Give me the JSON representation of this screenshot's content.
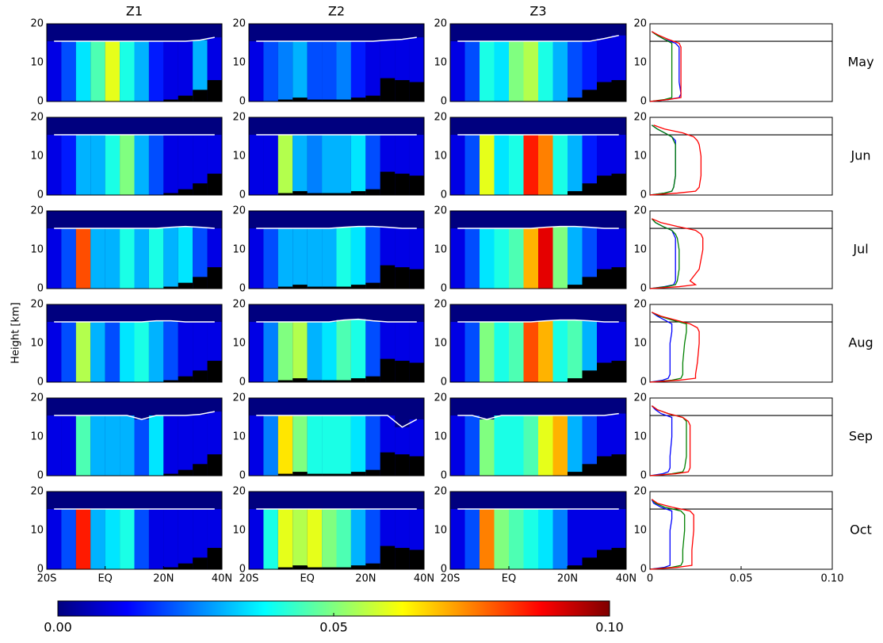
{
  "chart_data": {
    "type": "heatmap-grid",
    "ylabel": "Height [km]",
    "ylim": [
      0,
      20
    ],
    "yticks": [
      0,
      10,
      20
    ],
    "xlim": [
      -20,
      40
    ],
    "xticks": [
      {
        "value": -20,
        "label": "20S"
      },
      {
        "value": 0,
        "label": "EQ"
      },
      {
        "value": 20,
        "label": "20N"
      },
      {
        "value": 40,
        "label": "40N"
      }
    ],
    "x": [
      -17.5,
      -12.5,
      -7.5,
      -2.5,
      2.5,
      7.5,
      12.5,
      17.5,
      22.5,
      27.5,
      32.5,
      37.5
    ],
    "colormap": [
      "#00007f",
      "#0000ff",
      "#0080ff",
      "#00ffff",
      "#80ff80",
      "#ffff00",
      "#ff8000",
      "#ff0000",
      "#7f0000"
    ],
    "clim": [
      0,
      0.1
    ],
    "cticks": [
      {
        "value": 0,
        "label": "0.00"
      },
      0.05,
      {
        "value": 0.1,
        "label": "0.10"
      }
    ],
    "profile_xlim": [
      0,
      0.1
    ],
    "profile_xticks": [
      0,
      0.05,
      {
        "value": 0.1,
        "label": "0.10"
      }
    ],
    "profile_heights": [
      0,
      0.5,
      1,
      2,
      5,
      10,
      13,
      14,
      15,
      16,
      17,
      18
    ],
    "profile_colors": [
      "#0000ff",
      "#008000",
      "#ff0000"
    ],
    "zones": [
      {
        "name": "Z1",
        "terrain": [
          0,
          0,
          0,
          0,
          0,
          0,
          0,
          0,
          0.5,
          1.5,
          3,
          5.5
        ]
      },
      {
        "name": "Z2",
        "terrain": [
          0,
          0,
          0.5,
          1,
          0.5,
          0.5,
          0.5,
          1,
          1.5,
          6,
          5.5,
          5
        ]
      },
      {
        "name": "Z3",
        "terrain": [
          0,
          0,
          0,
          0,
          0,
          0,
          0,
          0,
          1,
          3,
          5,
          5.5
        ]
      }
    ],
    "rows": [
      {
        "name": "May",
        "panels": [
          {
            "values": [
              0.01,
              0.02,
              0.035,
              0.045,
              0.06,
              0.04,
              0.03,
              0.015,
              0.01,
              0.01,
              0.03,
              0.01
            ],
            "tropopause": [
              15.5,
              15.5,
              15.5,
              15.5,
              15.5,
              15.5,
              15.5,
              15.5,
              15.5,
              15.5,
              15.8,
              16.5
            ]
          },
          {
            "values": [
              0.01,
              0.02,
              0.025,
              0.03,
              0.02,
              0.02,
              0.025,
              0.015,
              0.01,
              0.01,
              0.01,
              0.01
            ],
            "tropopause": [
              15.5,
              15.5,
              15.5,
              15.5,
              15.5,
              15.5,
              15.5,
              15.5,
              15.5,
              15.8,
              16,
              16.5
            ]
          },
          {
            "values": [
              0.01,
              0.02,
              0.04,
              0.035,
              0.05,
              0.055,
              0.04,
              0.03,
              0.02,
              0.015,
              0.01,
              0.01
            ],
            "tropopause": [
              15.5,
              15.5,
              15.5,
              15.5,
              15.5,
              15.5,
              15.5,
              15.5,
              15.5,
              15.5,
              16.2,
              17
            ]
          }
        ],
        "profile": {
          "tropopause": 15.5,
          "series": [
            {
              "values": [
                0,
                0.01,
                0.016,
                0.017,
                0.016,
                0.016,
                0.016,
                0.016,
                0.014,
                0.008,
                0.004,
                0.001
              ]
            },
            {
              "values": [
                0,
                0.008,
                0.012,
                0.012,
                0.012,
                0.012,
                0.012,
                0.012,
                0.012,
                0.008,
                0.004,
                0.001
              ]
            },
            {
              "values": [
                0,
                0.01,
                0.017,
                0.017,
                0.017,
                0.017,
                0.017,
                0.017,
                0.016,
                0.01,
                0.005,
                0.001
              ]
            }
          ]
        }
      },
      {
        "name": "Jun",
        "panels": [
          {
            "values": [
              0.01,
              0.015,
              0.03,
              0.03,
              0.04,
              0.05,
              0.03,
              0.02,
              0.01,
              0.01,
              0.01,
              0.01
            ],
            "tropopause": [
              15.5,
              15.5,
              15.5,
              15.5,
              15.5,
              15.5,
              15.5,
              15.5,
              15.5,
              15.5,
              15.5,
              15.5
            ]
          },
          {
            "values": [
              0.01,
              0.01,
              0.055,
              0.03,
              0.025,
              0.03,
              0.03,
              0.035,
              0.02,
              0.01,
              0.01,
              0.01
            ],
            "tropopause": [
              15.5,
              15.5,
              15.5,
              15.5,
              15.5,
              15.5,
              15.5,
              15.5,
              15.5,
              15.5,
              15.5,
              15.5
            ]
          },
          {
            "values": [
              0.01,
              0.02,
              0.06,
              0.035,
              0.04,
              0.085,
              0.075,
              0.04,
              0.03,
              0.015,
              0.01,
              0.01
            ],
            "tropopause": [
              15.5,
              15.5,
              15.5,
              15.5,
              15.5,
              15.5,
              15.5,
              15.5,
              15.5,
              15.5,
              15.5,
              15.5
            ]
          }
        ],
        "profile": {
          "tropopause": 15.5,
          "series": [
            {
              "values": [
                0,
                0.008,
                0.012,
                0.013,
                0.014,
                0.014,
                0.014,
                0.014,
                0.012,
                0.008,
                0.004,
                0.001
              ]
            },
            {
              "values": [
                0,
                0.008,
                0.012,
                0.013,
                0.014,
                0.014,
                0.014,
                0.013,
                0.012,
                0.008,
                0.004,
                0.001
              ]
            },
            {
              "values": [
                0,
                0.015,
                0.025,
                0.027,
                0.028,
                0.028,
                0.027,
                0.026,
                0.024,
                0.018,
                0.008,
                0.002
              ]
            }
          ]
        }
      },
      {
        "name": "Jul",
        "panels": [
          {
            "values": [
              0.01,
              0.02,
              0.08,
              0.03,
              0.03,
              0.04,
              0.03,
              0.04,
              0.03,
              0.035,
              0.02,
              0.01
            ],
            "tropopause": [
              15.5,
              15.5,
              15.5,
              15.5,
              15.5,
              15.5,
              15.5,
              15.5,
              15.8,
              16,
              15.8,
              15.5
            ]
          },
          {
            "values": [
              0.01,
              0.02,
              0.03,
              0.03,
              0.03,
              0.03,
              0.04,
              0.035,
              0.02,
              0.01,
              0.01,
              0.01
            ],
            "tropopause": [
              15.5,
              15.5,
              15.5,
              15.5,
              15.5,
              15.5,
              15.8,
              16,
              16,
              15.8,
              15.5,
              15.5
            ]
          },
          {
            "values": [
              0.01,
              0.02,
              0.035,
              0.04,
              0.045,
              0.07,
              0.09,
              0.05,
              0.03,
              0.02,
              0.01,
              0.01
            ],
            "tropopause": [
              15.5,
              15.5,
              15.5,
              15.5,
              15.5,
              15.5,
              15.8,
              16,
              16,
              15.8,
              15.5,
              15.5
            ]
          }
        ],
        "profile": {
          "tropopause": 15.5,
          "series": [
            {
              "values": [
                0,
                0.008,
                0.013,
                0.014,
                0.014,
                0.014,
                0.014,
                0.013,
                0.012,
                0.007,
                0.003,
                0.001
              ]
            },
            {
              "values": [
                0,
                0.009,
                0.014,
                0.015,
                0.016,
                0.016,
                0.015,
                0.014,
                0.012,
                0.007,
                0.003,
                0.001
              ]
            },
            {
              "values": [
                0,
                0.016,
                0.025,
                0.022,
                0.027,
                0.029,
                0.029,
                0.028,
                0.025,
                0.015,
                0.006,
                0.001
              ]
            }
          ]
        }
      },
      {
        "name": "Aug",
        "panels": [
          {
            "values": [
              0.01,
              0.02,
              0.055,
              0.03,
              0.02,
              0.035,
              0.04,
              0.03,
              0.02,
              0.01,
              0.01,
              0.01
            ],
            "tropopause": [
              15.5,
              15.5,
              15.5,
              15.5,
              15.5,
              15.5,
              15.5,
              15.8,
              15.8,
              15.5,
              15.5,
              15.5
            ]
          },
          {
            "values": [
              0.01,
              0.025,
              0.05,
              0.055,
              0.03,
              0.035,
              0.045,
              0.04,
              0.02,
              0.01,
              0.01,
              0.01
            ],
            "tropopause": [
              15.5,
              15.5,
              15.5,
              15.5,
              15.5,
              15.5,
              16,
              16.2,
              15.8,
              15.5,
              15.5,
              15.5
            ]
          },
          {
            "values": [
              0.01,
              0.02,
              0.05,
              0.04,
              0.045,
              0.08,
              0.07,
              0.04,
              0.045,
              0.03,
              0.01,
              0.01
            ],
            "tropopause": [
              15.5,
              15.5,
              15.5,
              15.5,
              15.5,
              15.5,
              15.8,
              16,
              16,
              15.8,
              15.5,
              15.5
            ]
          }
        ],
        "profile": {
          "tropopause": 15.5,
          "series": [
            {
              "values": [
                0,
                0.007,
                0.01,
                0.011,
                0.011,
                0.011,
                0.012,
                0.012,
                0.012,
                0.008,
                0.004,
                0.001
              ]
            },
            {
              "values": [
                0,
                0.012,
                0.017,
                0.018,
                0.018,
                0.019,
                0.02,
                0.02,
                0.02,
                0.012,
                0.005,
                0.001
              ]
            },
            {
              "values": [
                0,
                0.016,
                0.025,
                0.025,
                0.026,
                0.027,
                0.027,
                0.026,
                0.022,
                0.014,
                0.006,
                0.001
              ]
            }
          ]
        }
      },
      {
        "name": "Sep",
        "panels": [
          {
            "values": [
              0.01,
              0.01,
              0.045,
              0.03,
              0.03,
              0.03,
              0.02,
              0.035,
              0.01,
              0.01,
              0.01,
              0.01
            ],
            "tropopause": [
              15.5,
              15.5,
              15.5,
              15.5,
              15.5,
              15.5,
              14.5,
              15.5,
              15.5,
              15.5,
              15.8,
              16.5
            ]
          },
          {
            "values": [
              0.01,
              0.025,
              0.065,
              0.05,
              0.04,
              0.04,
              0.04,
              0.035,
              0.02,
              0.01,
              0.01,
              0.01
            ],
            "tropopause": [
              15.5,
              15.5,
              15.5,
              15.5,
              15.5,
              15.5,
              15.5,
              15.5,
              15.5,
              15.5,
              12.5,
              14.5
            ]
          },
          {
            "values": [
              0.01,
              0.02,
              0.05,
              0.04,
              0.04,
              0.045,
              0.06,
              0.07,
              0.03,
              0.02,
              0.01,
              0.01
            ],
            "tropopause": [
              15.5,
              15.5,
              14.5,
              15.5,
              15.5,
              15.5,
              15.5,
              15.5,
              15.5,
              15.5,
              15.5,
              16
            ]
          }
        ],
        "profile": {
          "tropopause": 15.5,
          "series": [
            {
              "values": [
                0,
                0.007,
                0.01,
                0.011,
                0.011,
                0.012,
                0.012,
                0.012,
                0.012,
                0.006,
                0.003,
                0.001
              ]
            },
            {
              "values": [
                0,
                0.012,
                0.018,
                0.019,
                0.02,
                0.02,
                0.02,
                0.02,
                0.018,
                0.01,
                0.004,
                0.001
              ]
            },
            {
              "values": [
                0,
                0.014,
                0.021,
                0.022,
                0.022,
                0.022,
                0.022,
                0.021,
                0.018,
                0.01,
                0.004,
                0.001
              ]
            }
          ]
        }
      },
      {
        "name": "Oct",
        "panels": [
          {
            "values": [
              0.01,
              0.02,
              0.085,
              0.03,
              0.035,
              0.04,
              0.02,
              0.01,
              0.01,
              0.01,
              0.01,
              0.01
            ],
            "tropopause": [
              15.5,
              15.5,
              15.5,
              15.5,
              15.5,
              15.5,
              15.5,
              15.5,
              15.5,
              15.5,
              15.5,
              15.5
            ]
          },
          {
            "values": [
              0.01,
              0.04,
              0.06,
              0.055,
              0.06,
              0.05,
              0.045,
              0.03,
              0.02,
              0.01,
              0.01,
              0.01
            ],
            "tropopause": [
              15.5,
              15.5,
              15.5,
              15.5,
              15.5,
              15.5,
              15.5,
              15.5,
              15.5,
              15.5,
              15.5,
              15.5
            ]
          },
          {
            "values": [
              0.01,
              0.02,
              0.075,
              0.05,
              0.045,
              0.04,
              0.035,
              0.025,
              0.01,
              0.01,
              0.01,
              0.01
            ],
            "tropopause": [
              15.5,
              15.5,
              15.5,
              15.5,
              15.5,
              15.5,
              15.5,
              15.5,
              15.5,
              15.5,
              15.5,
              15.5
            ]
          }
        ],
        "profile": {
          "tropopause": 15.5,
          "series": [
            {
              "values": [
                0,
                0.008,
                0.011,
                0.011,
                0.011,
                0.011,
                0.012,
                0.012,
                0.012,
                0.006,
                0.002,
                0.001
              ]
            },
            {
              "values": [
                0,
                0.012,
                0.017,
                0.018,
                0.018,
                0.019,
                0.019,
                0.019,
                0.017,
                0.008,
                0.003,
                0.001
              ]
            },
            {
              "values": [
                0,
                0.015,
                0.023,
                0.023,
                0.023,
                0.024,
                0.024,
                0.024,
                0.022,
                0.012,
                0.004,
                0.001
              ]
            }
          ]
        }
      }
    ]
  }
}
